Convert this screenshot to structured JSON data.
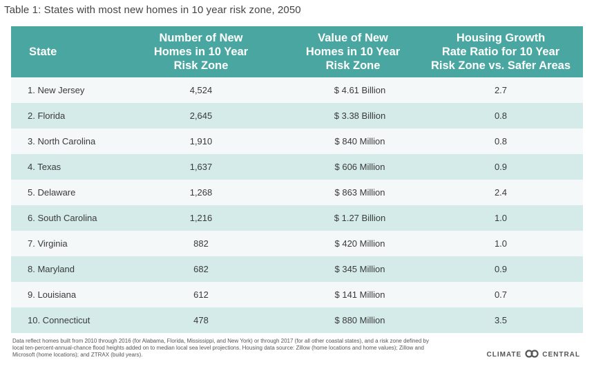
{
  "title": "Table 1: States with most new homes in 10 year risk zone, 2050",
  "headers": {
    "state": "State",
    "homes": "Number of New\nHomes in 10 Year\nRisk Zone",
    "value": "Value of New\nHomes in 10 Year\nRisk Zone",
    "ratio": "Housing Growth\nRate Ratio for 10 Year\nRisk Zone vs. Safer Areas"
  },
  "rows": [
    {
      "state": "1. New Jersey",
      "homes": "4,524",
      "value": "$ 4.61 Billion",
      "ratio": "2.7"
    },
    {
      "state": "2. Florida",
      "homes": "2,645",
      "value": "$ 3.38 Billion",
      "ratio": "0.8"
    },
    {
      "state": "3. North Carolina",
      "homes": "1,910",
      "value": "$ 840 Million",
      "ratio": "0.8"
    },
    {
      "state": "4. Texas",
      "homes": "1,637",
      "value": "$ 606 Million",
      "ratio": "0.9"
    },
    {
      "state": "5. Delaware",
      "homes": "1,268",
      "value": "$ 863 Million",
      "ratio": "2.4"
    },
    {
      "state": "6. South Carolina",
      "homes": "1,216",
      "value": "$ 1.27 Billion",
      "ratio": "1.0"
    },
    {
      "state": "7. Virginia",
      "homes": "882",
      "value": "$ 420 Million",
      "ratio": "1.0"
    },
    {
      "state": "8. Maryland",
      "homes": "682",
      "value": "$ 345 Million",
      "ratio": "0.9"
    },
    {
      "state": "9. Louisiana",
      "homes": "612",
      "value": "$ 141 Million",
      "ratio": "0.7"
    },
    {
      "state": "10. Connecticut",
      "homes": "478",
      "value": "$ 880 Million",
      "ratio": "3.5"
    }
  ],
  "footnote": "Data reflect homes built from 2010 through 2016 (for Alabama, Florida, Mississippi, and New York) or through 2017 (for all other coastal states), and a risk zone defined by local ten-percent-annual-chance flood heights added on to median local sea level projections. Housing data source: Zillow (home locations and home values); Zillow and Microsoft (home locations); and ZTRAX (build years).",
  "brand": {
    "left": "CLIMATE",
    "right": "CENTRAL",
    "logo_icon": "climate-central-logo-icon"
  }
}
